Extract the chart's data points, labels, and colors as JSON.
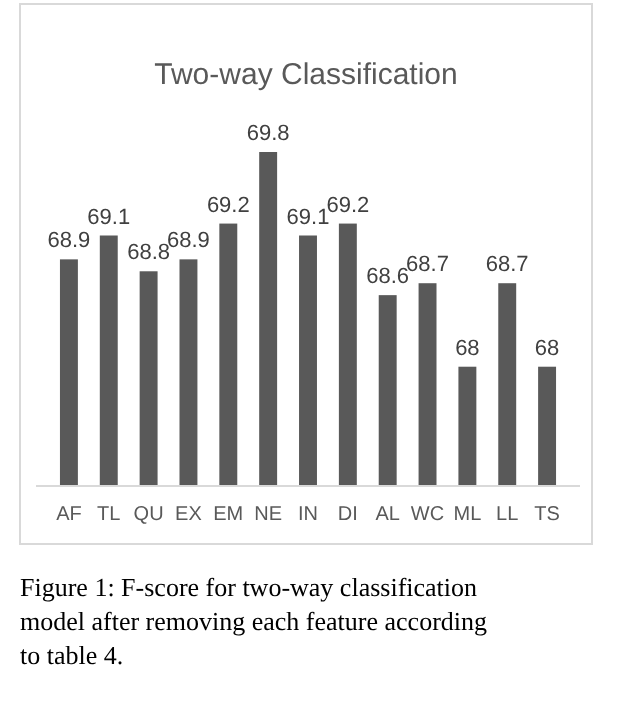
{
  "chart_data": {
    "type": "bar",
    "title": "Two-way Classification",
    "categories": [
      "AF",
      "TL",
      "QU",
      "EX",
      "EM",
      "NE",
      "IN",
      "DI",
      "AL",
      "WC",
      "ML",
      "LL",
      "TS"
    ],
    "values": [
      68.9,
      69.1,
      68.8,
      68.9,
      69.2,
      69.8,
      69.1,
      69.2,
      68.6,
      68.7,
      68,
      68.7,
      68
    ],
    "color": "#595959",
    "ylim": [
      67,
      69.8
    ],
    "data_labels": true,
    "annotations": [
      "Figure 1: F-score for two-way classification model after removing each feature according to table 4."
    ]
  }
}
